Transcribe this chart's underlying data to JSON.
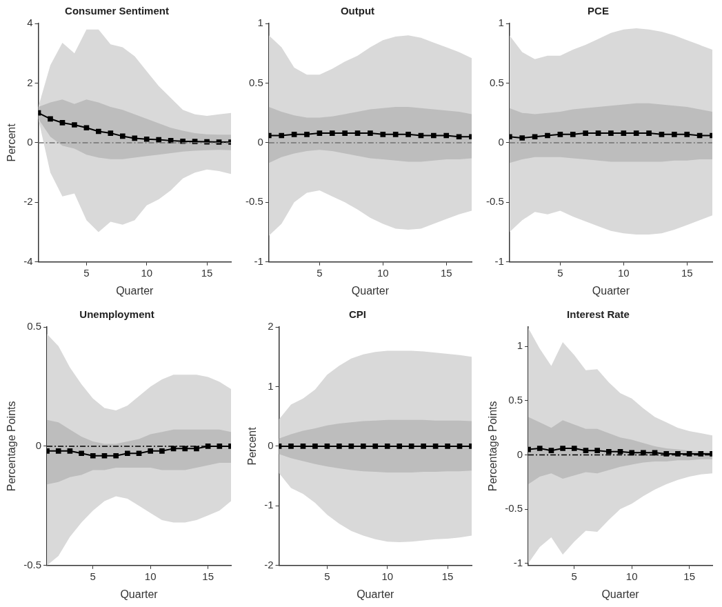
{
  "chart_data": [
    {
      "type": "line",
      "title": "Consumer Sentiment",
      "xlabel": "Quarter",
      "ylabel": "Percent",
      "x": [
        1,
        2,
        3,
        4,
        5,
        6,
        7,
        8,
        9,
        10,
        11,
        12,
        13,
        14,
        15,
        16,
        17
      ],
      "xlim": [
        1,
        17
      ],
      "xticks": [
        5,
        10,
        15
      ],
      "ylim": [
        -4,
        4
      ],
      "yticks": [
        -4,
        -2,
        0,
        2,
        4
      ],
      "grid": false,
      "legend": false,
      "marker": "square",
      "line_style": "solid",
      "ref_lines": [
        {
          "axis": "y",
          "value": 0,
          "color": "#707070",
          "line_style": "dashed"
        }
      ],
      "series": [
        {
          "color": "#d9d9d9",
          "values": [
            null,
            null,
            null,
            null,
            null,
            null,
            null,
            null,
            null,
            null,
            null,
            null,
            null,
            null,
            null,
            null,
            null
          ],
          "lower": [
            0.8,
            -1.0,
            -1.8,
            -1.7,
            -2.6,
            -3.0,
            -2.65,
            -2.75,
            -2.6,
            -2.1,
            -1.9,
            -1.6,
            -1.2,
            -1.0,
            -0.9,
            -0.95,
            -1.05
          ],
          "upper": [
            1.2,
            2.6,
            3.35,
            3.0,
            3.8,
            3.8,
            3.3,
            3.2,
            2.9,
            2.4,
            1.9,
            1.5,
            1.1,
            0.95,
            0.9,
            0.95,
            1.0
          ]
        },
        {
          "color": "#bdbdbd",
          "values": [
            null,
            null,
            null,
            null,
            null,
            null,
            null,
            null,
            null,
            null,
            null,
            null,
            null,
            null,
            null,
            null,
            null
          ],
          "lower": [
            0.8,
            0.2,
            -0.1,
            -0.2,
            -0.4,
            -0.5,
            -0.55,
            -0.55,
            -0.5,
            -0.45,
            -0.4,
            -0.35,
            -0.3,
            -0.27,
            -0.25,
            -0.24,
            -0.25
          ],
          "upper": [
            1.2,
            1.35,
            1.45,
            1.3,
            1.45,
            1.35,
            1.2,
            1.1,
            0.95,
            0.8,
            0.65,
            0.5,
            0.4,
            0.32,
            0.28,
            0.27,
            0.27
          ]
        },
        {
          "color": "#000000",
          "values": [
            1.0,
            0.8,
            0.67,
            0.6,
            0.5,
            0.38,
            0.32,
            0.22,
            0.15,
            0.12,
            0.1,
            0.07,
            0.05,
            0.04,
            0.03,
            0.02,
            0.02
          ]
        }
      ]
    },
    {
      "type": "line",
      "title": "Output",
      "xlabel": "Quarter",
      "x": [
        1,
        2,
        3,
        4,
        5,
        6,
        7,
        8,
        9,
        10,
        11,
        12,
        13,
        14,
        15,
        16,
        17
      ],
      "xlim": [
        1,
        17
      ],
      "xticks": [
        5,
        10,
        15
      ],
      "ylim": [
        -1,
        1
      ],
      "yticks": [
        -1,
        -0.5,
        0,
        0.5,
        1
      ],
      "grid": false,
      "legend": false,
      "marker": "square",
      "line_style": "solid",
      "ref_lines": [
        {
          "axis": "y",
          "value": 0,
          "color": "#707070",
          "line_style": "dashed"
        }
      ],
      "series": [
        {
          "color": "#d9d9d9",
          "values": [
            null,
            null,
            null,
            null,
            null,
            null,
            null,
            null,
            null,
            null,
            null,
            null,
            null,
            null,
            null,
            null,
            null
          ],
          "lower": [
            -0.78,
            -0.68,
            -0.5,
            -0.42,
            -0.4,
            -0.45,
            -0.5,
            -0.56,
            -0.63,
            -0.68,
            -0.72,
            -0.73,
            -0.72,
            -0.68,
            -0.64,
            -0.6,
            -0.57
          ],
          "upper": [
            0.9,
            0.8,
            0.63,
            0.57,
            0.57,
            0.62,
            0.68,
            0.73,
            0.8,
            0.86,
            0.89,
            0.9,
            0.88,
            0.84,
            0.8,
            0.76,
            0.71
          ]
        },
        {
          "color": "#bdbdbd",
          "values": [
            null,
            null,
            null,
            null,
            null,
            null,
            null,
            null,
            null,
            null,
            null,
            null,
            null,
            null,
            null,
            null,
            null
          ],
          "lower": [
            -0.17,
            -0.12,
            -0.09,
            -0.07,
            -0.06,
            -0.07,
            -0.09,
            -0.11,
            -0.13,
            -0.14,
            -0.15,
            -0.16,
            -0.16,
            -0.15,
            -0.14,
            -0.14,
            -0.13
          ],
          "upper": [
            0.3,
            0.26,
            0.23,
            0.21,
            0.21,
            0.22,
            0.24,
            0.26,
            0.28,
            0.29,
            0.3,
            0.3,
            0.29,
            0.28,
            0.27,
            0.26,
            0.24
          ]
        },
        {
          "color": "#000000",
          "values": [
            0.06,
            0.06,
            0.07,
            0.07,
            0.08,
            0.08,
            0.08,
            0.08,
            0.08,
            0.07,
            0.07,
            0.07,
            0.06,
            0.06,
            0.06,
            0.05,
            0.05
          ]
        }
      ]
    },
    {
      "type": "line",
      "title": "PCE",
      "xlabel": "Quarter",
      "x": [
        1,
        2,
        3,
        4,
        5,
        6,
        7,
        8,
        9,
        10,
        11,
        12,
        13,
        14,
        15,
        16,
        17
      ],
      "xlim": [
        1,
        17
      ],
      "xticks": [
        5,
        10,
        15
      ],
      "ylim": [
        -1,
        1
      ],
      "yticks": [
        -1,
        -0.5,
        0,
        0.5,
        1
      ],
      "grid": false,
      "legend": false,
      "marker": "square",
      "line_style": "solid",
      "ref_lines": [
        {
          "axis": "y",
          "value": 0,
          "color": "#707070",
          "line_style": "dashed"
        }
      ],
      "series": [
        {
          "color": "#d9d9d9",
          "values": [
            null,
            null,
            null,
            null,
            null,
            null,
            null,
            null,
            null,
            null,
            null,
            null,
            null,
            null,
            null,
            null,
            null
          ],
          "lower": [
            -0.75,
            -0.65,
            -0.58,
            -0.6,
            -0.57,
            -0.62,
            -0.66,
            -0.7,
            -0.74,
            -0.76,
            -0.77,
            -0.77,
            -0.76,
            -0.73,
            -0.69,
            -0.65,
            -0.61
          ],
          "upper": [
            0.9,
            0.76,
            0.7,
            0.73,
            0.73,
            0.78,
            0.82,
            0.87,
            0.92,
            0.95,
            0.96,
            0.95,
            0.93,
            0.9,
            0.86,
            0.82,
            0.78
          ]
        },
        {
          "color": "#bdbdbd",
          "values": [
            null,
            null,
            null,
            null,
            null,
            null,
            null,
            null,
            null,
            null,
            null,
            null,
            null,
            null,
            null,
            null,
            null
          ],
          "lower": [
            -0.17,
            -0.14,
            -0.12,
            -0.12,
            -0.12,
            -0.13,
            -0.14,
            -0.15,
            -0.16,
            -0.16,
            -0.16,
            -0.16,
            -0.16,
            -0.15,
            -0.15,
            -0.14,
            -0.14
          ],
          "upper": [
            0.29,
            0.25,
            0.24,
            0.25,
            0.26,
            0.28,
            0.29,
            0.3,
            0.31,
            0.32,
            0.33,
            0.33,
            0.32,
            0.31,
            0.3,
            0.28,
            0.26
          ]
        },
        {
          "color": "#000000",
          "values": [
            0.05,
            0.04,
            0.05,
            0.06,
            0.07,
            0.07,
            0.08,
            0.08,
            0.08,
            0.08,
            0.08,
            0.08,
            0.07,
            0.07,
            0.07,
            0.06,
            0.06
          ]
        }
      ]
    },
    {
      "type": "line",
      "title": "Unemployment",
      "xlabel": "Quarter",
      "ylabel": "Percentage Points",
      "x": [
        1,
        2,
        3,
        4,
        5,
        6,
        7,
        8,
        9,
        10,
        11,
        12,
        13,
        14,
        15,
        16,
        17
      ],
      "xlim": [
        1,
        17
      ],
      "xticks": [
        5,
        10,
        15
      ],
      "ylim": [
        -0.5,
        0.5
      ],
      "yticks": [
        -0.5,
        0,
        0.5
      ],
      "grid": false,
      "legend": false,
      "marker": "square",
      "line_style": "solid",
      "ref_lines": [
        {
          "axis": "y",
          "value": 0,
          "color": "#000000",
          "line_style": "dashed"
        }
      ],
      "series": [
        {
          "color": "#d9d9d9",
          "values": [
            null,
            null,
            null,
            null,
            null,
            null,
            null,
            null,
            null,
            null,
            null,
            null,
            null,
            null,
            null,
            null,
            null
          ],
          "lower": [
            -0.5,
            -0.46,
            -0.38,
            -0.32,
            -0.27,
            -0.23,
            -0.21,
            -0.22,
            -0.25,
            -0.28,
            -0.31,
            -0.32,
            -0.32,
            -0.31,
            -0.29,
            -0.27,
            -0.23
          ],
          "upper": [
            0.47,
            0.42,
            0.33,
            0.26,
            0.2,
            0.16,
            0.15,
            0.17,
            0.21,
            0.25,
            0.28,
            0.3,
            0.3,
            0.3,
            0.29,
            0.27,
            0.24
          ]
        },
        {
          "color": "#bdbdbd",
          "values": [
            null,
            null,
            null,
            null,
            null,
            null,
            null,
            null,
            null,
            null,
            null,
            null,
            null,
            null,
            null,
            null,
            null
          ],
          "lower": [
            -0.16,
            -0.15,
            -0.13,
            -0.12,
            -0.1,
            -0.1,
            -0.09,
            -0.09,
            -0.09,
            -0.09,
            -0.1,
            -0.1,
            -0.1,
            -0.09,
            -0.08,
            -0.07,
            -0.07
          ],
          "upper": [
            0.11,
            0.1,
            0.07,
            0.04,
            0.02,
            0.01,
            0.01,
            0.02,
            0.03,
            0.05,
            0.06,
            0.07,
            0.07,
            0.07,
            0.07,
            0.07,
            0.06
          ]
        },
        {
          "color": "#000000",
          "values": [
            -0.02,
            -0.02,
            -0.02,
            -0.03,
            -0.04,
            -0.04,
            -0.04,
            -0.03,
            -0.03,
            -0.02,
            -0.02,
            -0.01,
            -0.01,
            -0.01,
            0,
            0,
            0
          ]
        }
      ]
    },
    {
      "type": "line",
      "title": "CPI",
      "xlabel": "Quarter",
      "ylabel": "Percent",
      "x": [
        1,
        2,
        3,
        4,
        5,
        6,
        7,
        8,
        9,
        10,
        11,
        12,
        13,
        14,
        15,
        16,
        17
      ],
      "xlim": [
        1,
        17
      ],
      "xticks": [
        5,
        10,
        15
      ],
      "ylim": [
        -2,
        2
      ],
      "yticks": [
        -2,
        -1,
        0,
        1,
        2
      ],
      "grid": false,
      "legend": false,
      "marker": "square",
      "line_style": "solid",
      "series": [
        {
          "color": "#d9d9d9",
          "values": [
            null,
            null,
            null,
            null,
            null,
            null,
            null,
            null,
            null,
            null,
            null,
            null,
            null,
            null,
            null,
            null,
            null
          ],
          "lower": [
            -0.45,
            -0.7,
            -0.8,
            -0.95,
            -1.15,
            -1.3,
            -1.42,
            -1.5,
            -1.56,
            -1.6,
            -1.61,
            -1.6,
            -1.58,
            -1.56,
            -1.55,
            -1.53,
            -1.5
          ],
          "upper": [
            0.45,
            0.7,
            0.8,
            0.95,
            1.2,
            1.35,
            1.47,
            1.54,
            1.58,
            1.6,
            1.6,
            1.6,
            1.59,
            1.57,
            1.55,
            1.53,
            1.5
          ]
        },
        {
          "color": "#bdbdbd",
          "values": [
            null,
            null,
            null,
            null,
            null,
            null,
            null,
            null,
            null,
            null,
            null,
            null,
            null,
            null,
            null,
            null,
            null
          ],
          "lower": [
            -0.13,
            -0.2,
            -0.25,
            -0.3,
            -0.34,
            -0.37,
            -0.4,
            -0.42,
            -0.43,
            -0.44,
            -0.44,
            -0.44,
            -0.43,
            -0.43,
            -0.42,
            -0.42,
            -0.41
          ],
          "upper": [
            0.13,
            0.2,
            0.26,
            0.3,
            0.35,
            0.38,
            0.4,
            0.42,
            0.43,
            0.44,
            0.44,
            0.44,
            0.44,
            0.43,
            0.43,
            0.43,
            0.42
          ]
        },
        {
          "color": "#000000",
          "values": [
            0,
            0,
            0,
            0,
            0,
            0,
            0,
            0,
            0,
            0,
            0,
            0,
            0,
            0,
            0,
            0,
            0
          ]
        }
      ]
    },
    {
      "type": "line",
      "title": "Interest Rate",
      "xlabel": "Quarter",
      "ylabel": "Percentage Points",
      "x": [
        1,
        2,
        3,
        4,
        5,
        6,
        7,
        8,
        9,
        10,
        11,
        12,
        13,
        14,
        15,
        16,
        17
      ],
      "xlim": [
        1,
        17
      ],
      "xticks": [
        5,
        10,
        15
      ],
      "ylim": [
        -1.02,
        1.18
      ],
      "yticks": [
        -1,
        -0.5,
        0,
        0.5,
        1
      ],
      "grid": false,
      "legend": false,
      "marker": "square",
      "line_style": "solid",
      "ref_lines": [
        {
          "axis": "y",
          "value": 0,
          "color": "#000000",
          "line_style": "dashed"
        }
      ],
      "series": [
        {
          "color": "#d9d9d9",
          "values": [
            null,
            null,
            null,
            null,
            null,
            null,
            null,
            null,
            null,
            null,
            null,
            null,
            null,
            null,
            null,
            null,
            null
          ],
          "lower": [
            -1.0,
            -0.85,
            -0.76,
            -0.92,
            -0.8,
            -0.7,
            -0.71,
            -0.6,
            -0.5,
            -0.45,
            -0.38,
            -0.32,
            -0.27,
            -0.23,
            -0.2,
            -0.18,
            -0.17
          ],
          "upper": [
            1.17,
            0.98,
            0.82,
            1.04,
            0.92,
            0.78,
            0.79,
            0.67,
            0.57,
            0.52,
            0.43,
            0.35,
            0.3,
            0.25,
            0.22,
            0.2,
            0.18
          ]
        },
        {
          "color": "#bdbdbd",
          "values": [
            null,
            null,
            null,
            null,
            null,
            null,
            null,
            null,
            null,
            null,
            null,
            null,
            null,
            null,
            null,
            null,
            null
          ],
          "lower": [
            -0.27,
            -0.2,
            -0.17,
            -0.22,
            -0.19,
            -0.16,
            -0.17,
            -0.14,
            -0.11,
            -0.09,
            -0.07,
            -0.06,
            -0.06,
            -0.05,
            -0.05,
            -0.04,
            -0.04
          ],
          "upper": [
            0.35,
            0.3,
            0.25,
            0.32,
            0.28,
            0.24,
            0.24,
            0.2,
            0.16,
            0.14,
            0.11,
            0.08,
            0.06,
            0.05,
            0.04,
            0.03,
            0.03
          ]
        },
        {
          "color": "#000000",
          "values": [
            0.05,
            0.06,
            0.04,
            0.06,
            0.06,
            0.04,
            0.04,
            0.03,
            0.03,
            0.02,
            0.02,
            0.02,
            0.01,
            0.01,
            0.01,
            0.01,
            0.01
          ]
        }
      ]
    }
  ]
}
